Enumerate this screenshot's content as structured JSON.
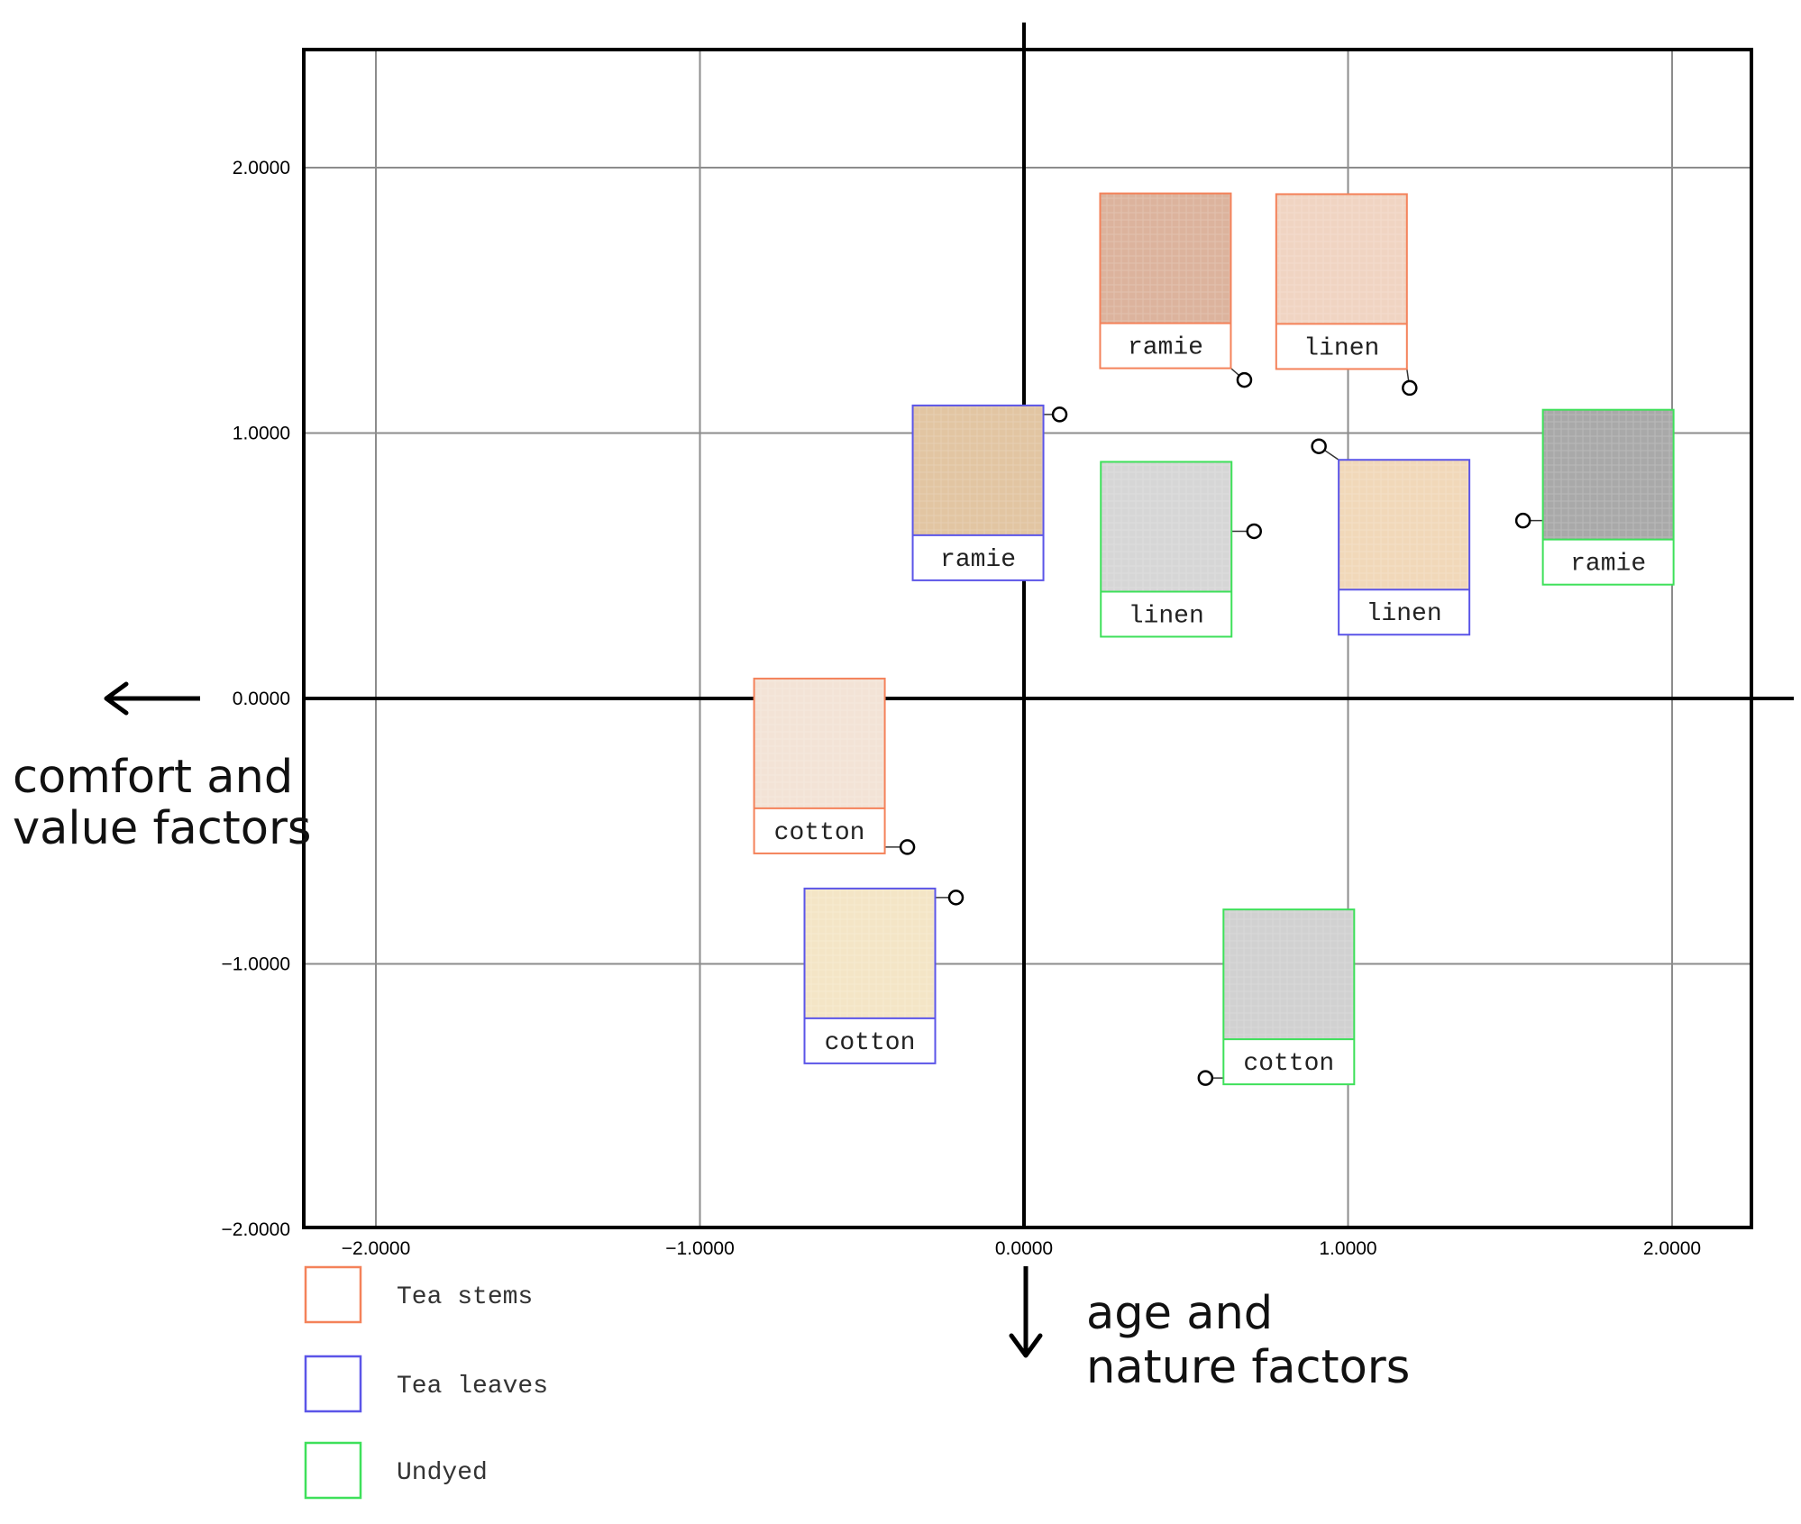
{
  "chart_data": {
    "type": "scatter",
    "title": "",
    "xlabel": "age and nature factors",
    "ylabel": "comfort and value factors",
    "xlim": [
      -2.2,
      2.3
    ],
    "ylim": [
      -2.0,
      2.45
    ],
    "x_ticks": [
      "−2.0000",
      "−1.0000",
      "0.0000",
      "1.0000",
      "2.0000"
    ],
    "y_ticks": [
      "2.0000",
      "1.0000",
      "0.0000",
      "−1.0000",
      "−2.0000"
    ],
    "grid": true,
    "legend_position": "bottom-left",
    "series": [
      {
        "name": "Tea stems",
        "color": "#f4825a"
      },
      {
        "name": "Tea leaves",
        "color": "#5b55e8"
      },
      {
        "name": "Undyed",
        "color": "#3ee05a"
      }
    ],
    "points": [
      {
        "series": "Tea stems",
        "label": "ramie",
        "x": 0.68,
        "y": 1.2,
        "swatch": "#dcb39d"
      },
      {
        "series": "Tea stems",
        "label": "linen",
        "x": 1.19,
        "y": 1.17,
        "swatch": "#f0d4c2"
      },
      {
        "series": "Tea stems",
        "label": "cotton",
        "x": -0.36,
        "y": -0.56,
        "swatch": "#f3e3d6"
      },
      {
        "series": "Tea leaves",
        "label": "ramie",
        "x": 0.11,
        "y": 1.07,
        "swatch": "#e2c5a2"
      },
      {
        "series": "Tea leaves",
        "label": "linen",
        "x": 0.91,
        "y": 0.95,
        "swatch": "#f1d8b9"
      },
      {
        "series": "Tea leaves",
        "label": "cotton",
        "x": -0.21,
        "y": -0.75,
        "swatch": "#f4e5c6"
      },
      {
        "series": "Undyed",
        "label": "linen",
        "x": 0.71,
        "y": 0.63,
        "swatch": "#d6d6d6"
      },
      {
        "series": "Undyed",
        "label": "ramie",
        "x": 1.54,
        "y": 0.67,
        "swatch": "#a9a9a9"
      },
      {
        "series": "Undyed",
        "label": "cotton",
        "x": 0.56,
        "y": -1.43,
        "swatch": "#d1d1d1"
      }
    ]
  }
}
